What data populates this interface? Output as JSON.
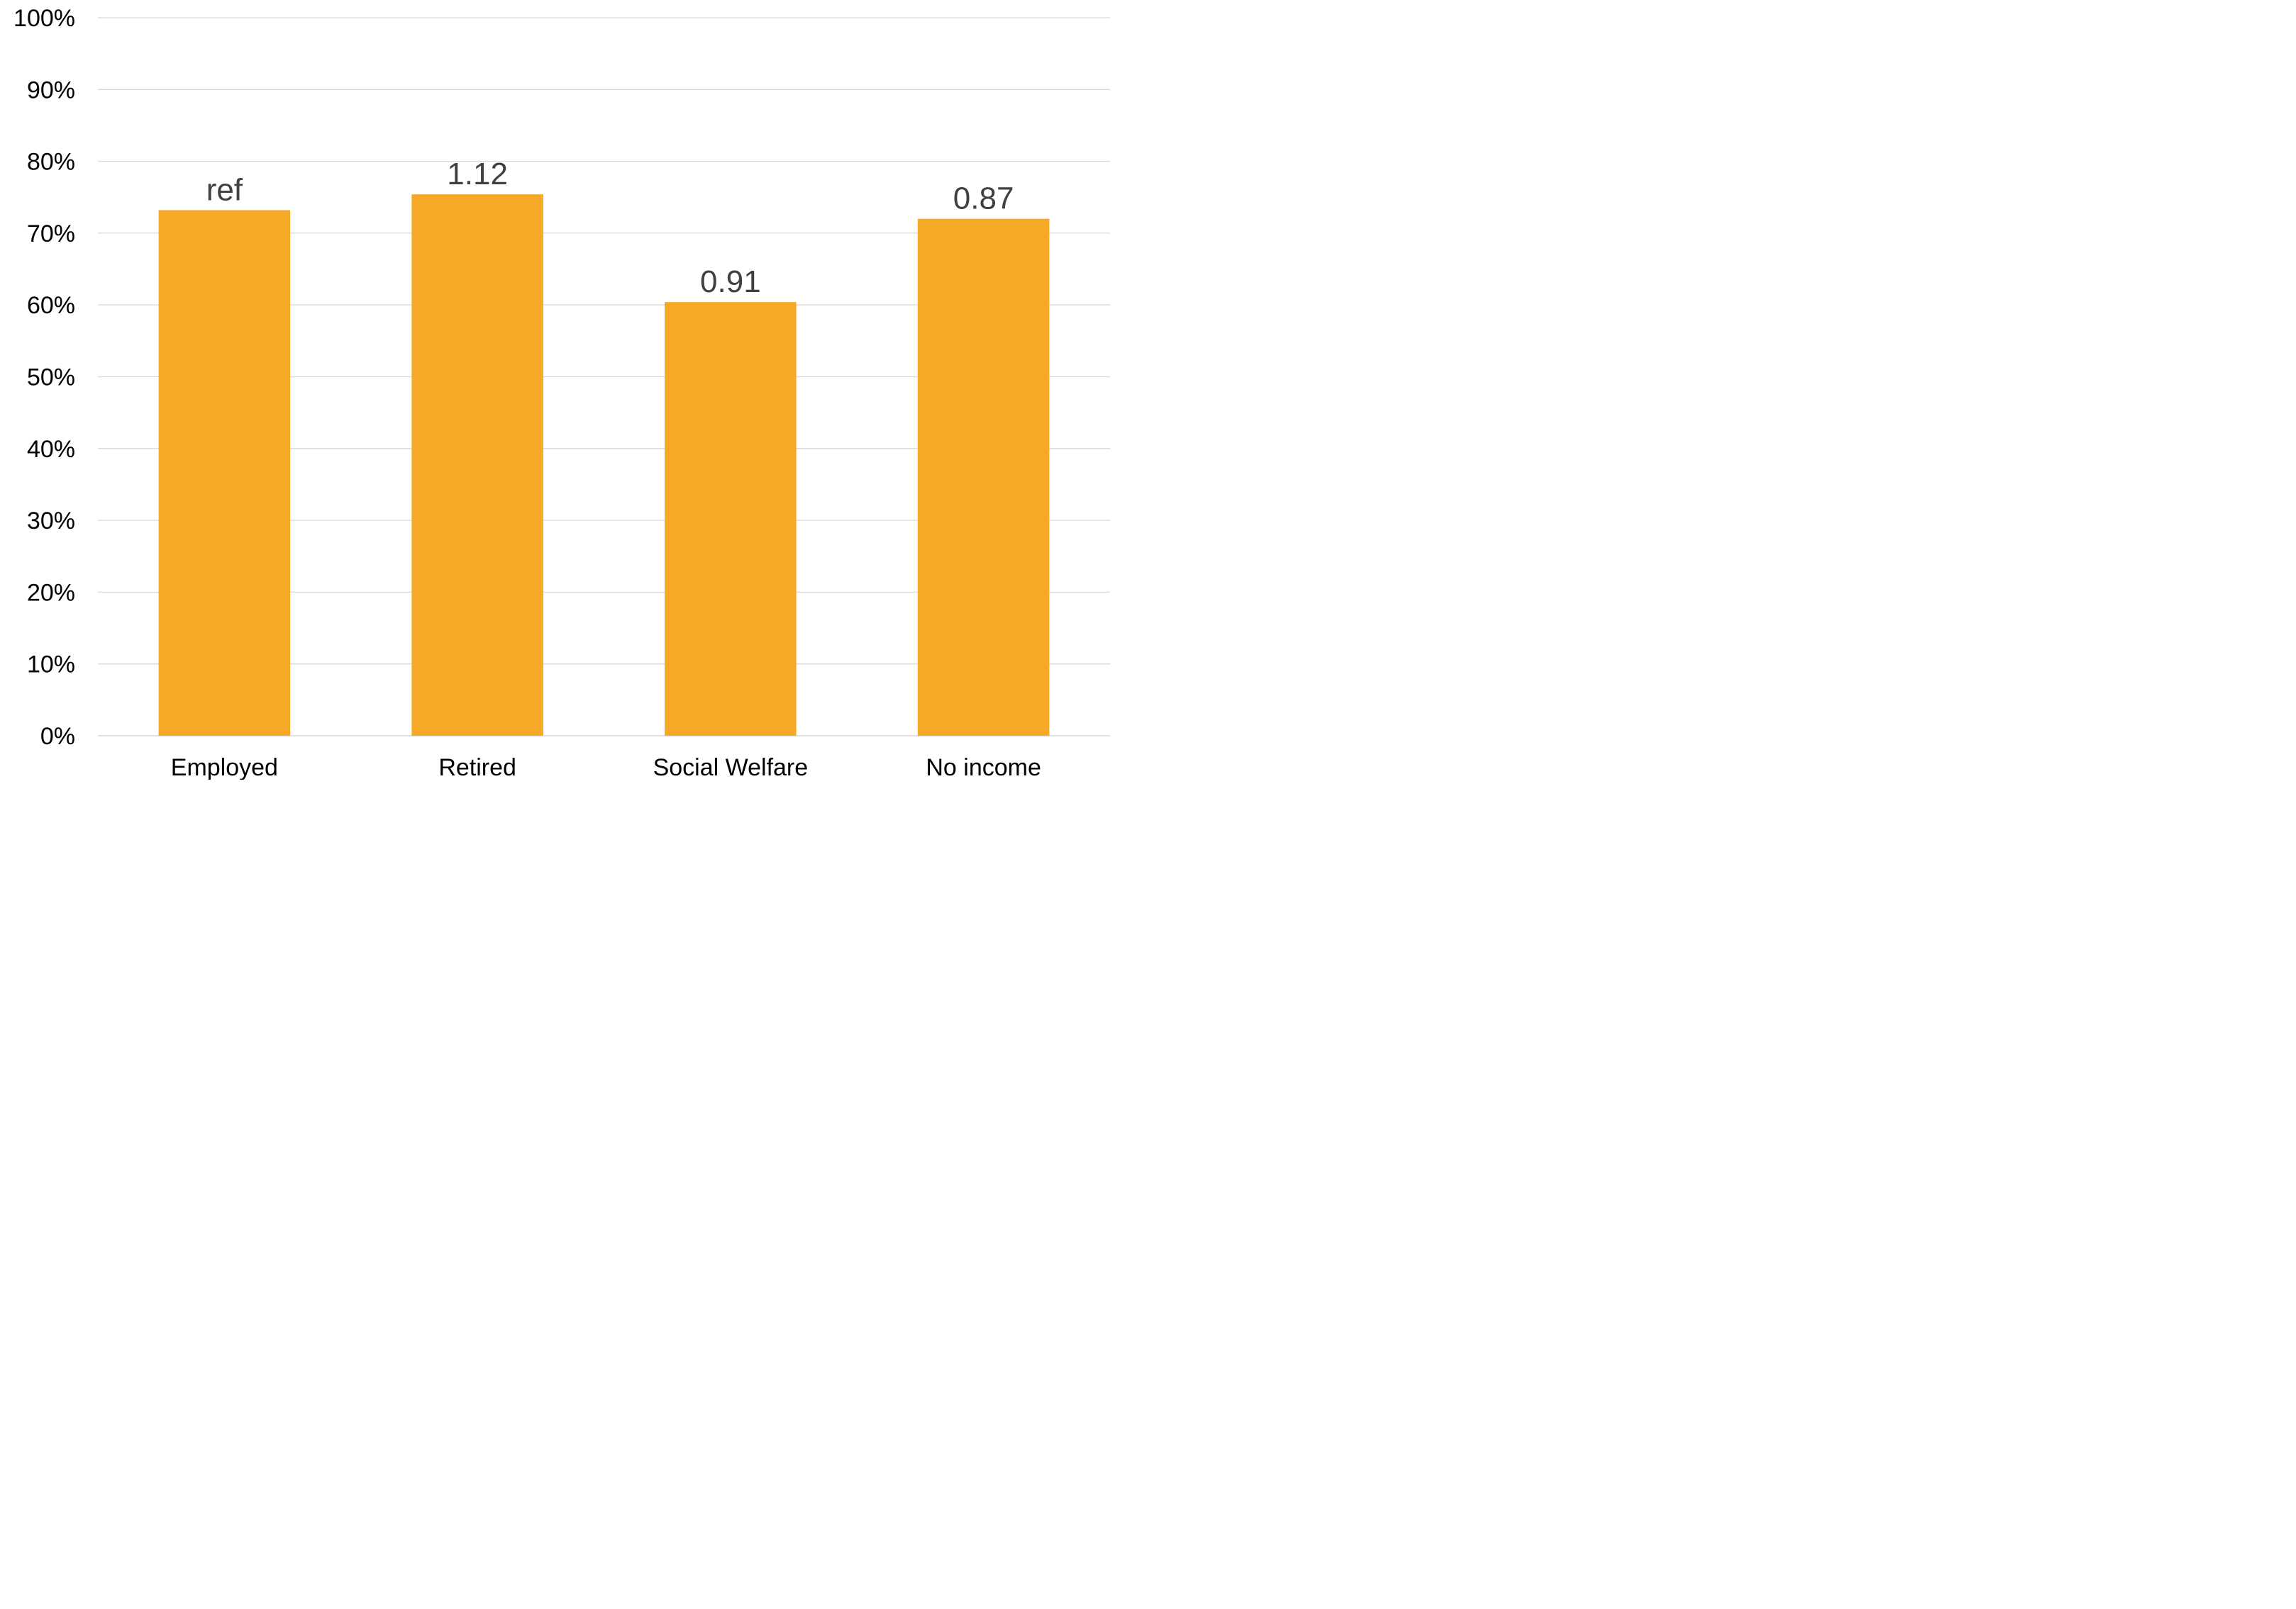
{
  "chart_data": {
    "type": "bar",
    "categories": [
      "Employed",
      "Retired",
      "Social Welfare",
      "No income"
    ],
    "values": [
      73.2,
      75.4,
      60.4,
      72.0
    ],
    "data_labels": [
      "ref",
      "1.12",
      "0.91",
      "0.87"
    ],
    "y_tick_labels": [
      "0%",
      "10%",
      "20%",
      "30%",
      "40%",
      "50%",
      "60%",
      "70%",
      "80%",
      "90%",
      "100%"
    ],
    "ylim": [
      0,
      100
    ],
    "y_unit": "%",
    "grid": true,
    "legend": "none",
    "title": "",
    "xlabel": "",
    "ylabel": "",
    "colors": {
      "bar": "#F5A927",
      "grid": "#D9D9D9",
      "label": "#404040",
      "axis_text": "#000000"
    }
  }
}
